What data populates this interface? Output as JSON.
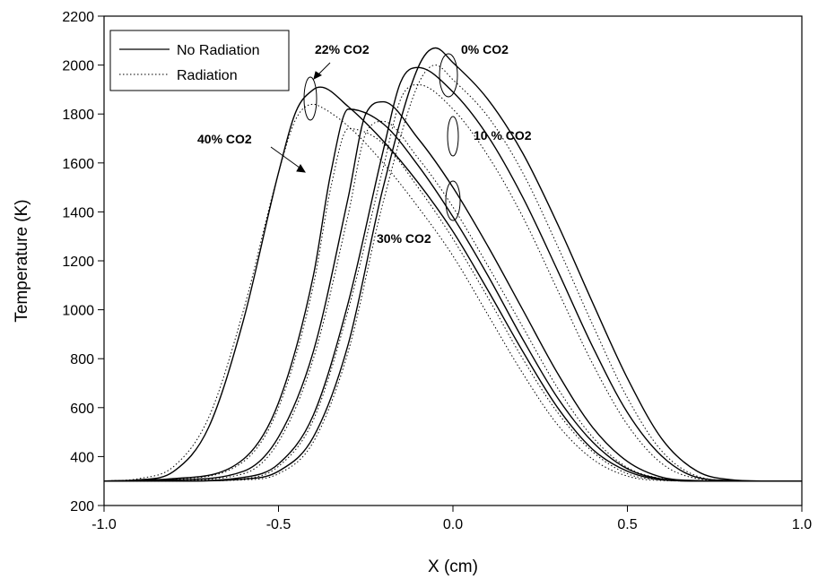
{
  "chart_data": {
    "type": "line",
    "xlabel": "X (cm)",
    "ylabel": "Temperature (K)",
    "xlim": [
      -1.0,
      1.0
    ],
    "ylim": [
      200,
      2200
    ],
    "x_ticks": [
      -1.0,
      -0.5,
      0.0,
      0.5,
      1.0
    ],
    "x_tick_labels": [
      "-1.0",
      "-0.5",
      "0.0",
      "0.5",
      "1.0"
    ],
    "y_ticks": [
      200,
      400,
      600,
      800,
      1000,
      1200,
      1400,
      1600,
      1800,
      2000,
      2200
    ],
    "y_tick_labels": [
      "200",
      "400",
      "600",
      "800",
      "1000",
      "1200",
      "1400",
      "1600",
      "1800",
      "2000",
      "2200"
    ],
    "grid": false,
    "legend_position": "top-left",
    "legend": [
      {
        "label": "No Radiation",
        "style": "solid"
      },
      {
        "label": "Radiation",
        "style": "dotted"
      }
    ],
    "annotations": [
      "0% CO2",
      "10 % CO2",
      "22% CO2",
      "30% CO2",
      "40% CO2"
    ],
    "series": [
      {
        "co2": "0%",
        "radiation": false,
        "x": [
          -1.0,
          -0.8,
          -0.6,
          -0.5,
          -0.4,
          -0.3,
          -0.2,
          -0.1,
          -0.05,
          0.0,
          0.1,
          0.2,
          0.3,
          0.4,
          0.5,
          0.6,
          0.7,
          0.8,
          0.9,
          1.0
        ],
        "y": [
          300,
          300,
          308,
          340,
          480,
          860,
          1500,
          1990,
          2070,
          2010,
          1860,
          1640,
          1350,
          1030,
          720,
          470,
          340,
          305,
          300,
          300
        ]
      },
      {
        "co2": "0%",
        "radiation": true,
        "x": [
          -1.0,
          -0.8,
          -0.6,
          -0.5,
          -0.4,
          -0.3,
          -0.2,
          -0.1,
          -0.05,
          0.0,
          0.1,
          0.2,
          0.3,
          0.4,
          0.5,
          0.6,
          0.7,
          0.8,
          0.9,
          1.0
        ],
        "y": [
          300,
          300,
          305,
          330,
          460,
          830,
          1440,
          1920,
          2000,
          1940,
          1790,
          1560,
          1260,
          940,
          640,
          420,
          320,
          302,
          300,
          300
        ]
      },
      {
        "co2": "10%",
        "radiation": false,
        "x": [
          -1.0,
          -0.8,
          -0.6,
          -0.5,
          -0.4,
          -0.3,
          -0.2,
          -0.15,
          -0.1,
          0.0,
          0.1,
          0.2,
          0.3,
          0.4,
          0.5,
          0.6,
          0.7,
          0.8,
          0.9,
          1.0
        ],
        "y": [
          300,
          300,
          315,
          370,
          570,
          1030,
          1650,
          1930,
          1990,
          1890,
          1710,
          1460,
          1160,
          850,
          580,
          400,
          315,
          302,
          300,
          300
        ]
      },
      {
        "co2": "10%",
        "radiation": true,
        "x": [
          -1.0,
          -0.8,
          -0.6,
          -0.5,
          -0.4,
          -0.3,
          -0.2,
          -0.15,
          -0.1,
          0.0,
          0.1,
          0.2,
          0.3,
          0.4,
          0.5,
          0.6,
          0.7,
          0.8,
          0.9,
          1.0
        ],
        "y": [
          300,
          300,
          310,
          360,
          550,
          1000,
          1580,
          1860,
          1920,
          1820,
          1630,
          1380,
          1080,
          780,
          530,
          370,
          310,
          301,
          300,
          300
        ]
      },
      {
        "co2": "22%",
        "radiation": false,
        "x": [
          -1.0,
          -0.8,
          -0.6,
          -0.5,
          -0.4,
          -0.3,
          -0.25,
          -0.2,
          -0.1,
          0.0,
          0.1,
          0.2,
          0.3,
          0.4,
          0.5,
          0.6,
          0.7,
          0.8,
          0.9,
          1.0
        ],
        "y": [
          300,
          305,
          340,
          480,
          830,
          1460,
          1800,
          1850,
          1700,
          1500,
          1260,
          1000,
          740,
          520,
          380,
          315,
          302,
          300,
          300,
          300
        ]
      },
      {
        "co2": "22%",
        "radiation": true,
        "x": [
          -1.0,
          -0.8,
          -0.6,
          -0.5,
          -0.4,
          -0.3,
          -0.25,
          -0.2,
          -0.1,
          0.0,
          0.1,
          0.2,
          0.3,
          0.4,
          0.5,
          0.6,
          0.7,
          0.8,
          0.9,
          1.0
        ],
        "y": [
          300,
          303,
          330,
          460,
          800,
          1390,
          1720,
          1770,
          1620,
          1420,
          1180,
          930,
          680,
          480,
          355,
          310,
          301,
          300,
          300,
          300
        ]
      },
      {
        "co2": "30%",
        "radiation": false,
        "x": [
          -1.0,
          -0.8,
          -0.6,
          -0.5,
          -0.4,
          -0.35,
          -0.3,
          -0.2,
          -0.1,
          0.0,
          0.1,
          0.2,
          0.3,
          0.4,
          0.5,
          0.6,
          0.7,
          0.8,
          0.9,
          1.0
        ],
        "y": [
          300,
          310,
          390,
          620,
          1140,
          1560,
          1820,
          1760,
          1590,
          1380,
          1140,
          880,
          640,
          460,
          350,
          308,
          300,
          300,
          300,
          300
        ]
      },
      {
        "co2": "30%",
        "radiation": true,
        "x": [
          -1.0,
          -0.8,
          -0.6,
          -0.5,
          -0.4,
          -0.35,
          -0.3,
          -0.2,
          -0.1,
          0.0,
          0.1,
          0.2,
          0.3,
          0.4,
          0.5,
          0.6,
          0.7,
          0.8,
          0.9,
          1.0
        ],
        "y": [
          300,
          308,
          380,
          600,
          1100,
          1500,
          1740,
          1680,
          1500,
          1290,
          1050,
          800,
          580,
          420,
          330,
          304,
          300,
          300,
          300,
          300
        ]
      },
      {
        "co2": "40%",
        "radiation": false,
        "x": [
          -1.0,
          -0.9,
          -0.8,
          -0.7,
          -0.6,
          -0.5,
          -0.45,
          -0.4,
          -0.38,
          -0.3,
          -0.2,
          -0.1,
          0.0,
          0.1,
          0.2,
          0.3,
          0.4,
          0.5,
          0.6,
          0.7,
          0.8,
          0.9,
          1.0
        ],
        "y": [
          300,
          305,
          340,
          520,
          960,
          1560,
          1810,
          1900,
          1910,
          1830,
          1690,
          1520,
          1320,
          1080,
          830,
          600,
          430,
          340,
          305,
          300,
          300,
          300,
          300
        ]
      },
      {
        "co2": "40%",
        "radiation": true,
        "x": [
          -1.0,
          -0.9,
          -0.8,
          -0.7,
          -0.6,
          -0.5,
          -0.45,
          -0.4,
          -0.38,
          -0.3,
          -0.2,
          -0.1,
          0.0,
          0.1,
          0.2,
          0.3,
          0.4,
          0.5,
          0.6,
          0.7,
          0.8,
          0.9,
          1.0
        ],
        "y": [
          300,
          310,
          360,
          560,
          1000,
          1560,
          1780,
          1840,
          1830,
          1750,
          1600,
          1420,
          1220,
          980,
          740,
          530,
          390,
          320,
          302,
          300,
          300,
          300,
          300
        ]
      }
    ]
  }
}
